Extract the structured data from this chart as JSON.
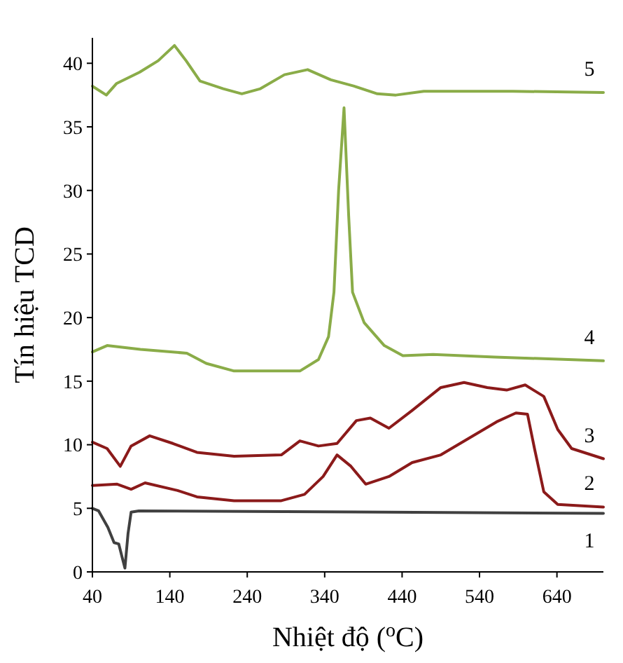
{
  "chart_data": {
    "type": "line",
    "xlabel": "Nhiệt độ ($^{o}$C)",
    "ylabel": "Tín hiệu TCD",
    "xlim": [
      40,
      700
    ],
    "ylim": [
      0,
      42
    ],
    "xticks": [
      40,
      140,
      240,
      340,
      440,
      540,
      640
    ],
    "yticks": [
      0,
      5,
      10,
      15,
      20,
      25,
      30,
      35,
      40
    ],
    "grid": false,
    "marker": "none",
    "line_style": "solid",
    "series": [
      {
        "name": "1",
        "color": "#404040",
        "x": [
          40,
          48,
          60,
          68,
          74,
          79,
          82,
          86,
          90,
          100,
          700
        ],
        "values": [
          5,
          4.8,
          3.5,
          2.3,
          2.2,
          1,
          0.3,
          3,
          4.7,
          4.8,
          4.6
        ]
      },
      {
        "name": "2",
        "color": "#8b1a1a",
        "x": [
          40,
          72,
          90,
          108,
          150,
          175,
          223,
          284,
          314,
          338,
          356,
          374,
          393,
          423,
          453,
          490,
          526,
          562,
          587,
          602,
          611,
          623,
          641,
          700
        ],
        "values": [
          6.8,
          6.9,
          6.5,
          7,
          6.4,
          5.9,
          5.6,
          5.6,
          6.1,
          7.5,
          9.2,
          8.3,
          6.9,
          7.5,
          8.6,
          9.2,
          10.5,
          11.8,
          12.5,
          12.4,
          9.7,
          6.3,
          5.3,
          5.1
        ]
      },
      {
        "name": "3",
        "color": "#8b1a1a",
        "x": [
          40,
          59,
          76,
          90,
          114,
          144,
          175,
          223,
          284,
          308,
          332,
          356,
          381,
          399,
          423,
          453,
          490,
          520,
          550,
          575,
          599,
          623,
          641,
          659,
          700
        ],
        "values": [
          10.2,
          9.7,
          8.3,
          9.9,
          10.7,
          10.1,
          9.4,
          9.1,
          9.2,
          10.3,
          9.9,
          10.1,
          11.9,
          12.1,
          11.3,
          12.7,
          14.5,
          14.9,
          14.5,
          14.3,
          14.7,
          13.8,
          11.2,
          9.7,
          8.9
        ]
      },
      {
        "name": "4",
        "color": "#8aac48",
        "x": [
          40,
          59,
          102,
          162,
          187,
          223,
          308,
          332,
          345,
          352,
          358,
          365,
          371,
          376,
          391,
          417,
          441,
          480,
          560,
          700
        ],
        "values": [
          17.3,
          17.8,
          17.5,
          17.2,
          16.4,
          15.8,
          15.8,
          16.7,
          18.5,
          22,
          30,
          36.5,
          28,
          22,
          19.6,
          17.8,
          17,
          17.1,
          16.9,
          16.6
        ]
      },
      {
        "name": "5",
        "color": "#8aac48",
        "x": [
          40,
          58,
          71,
          101,
          125,
          146,
          161,
          179,
          209,
          233,
          257,
          288,
          318,
          348,
          378,
          408,
          432,
          468,
          583,
          700
        ],
        "values": [
          38.2,
          37.5,
          38.4,
          39.3,
          40.2,
          41.4,
          40.2,
          38.6,
          38,
          37.6,
          38,
          39.1,
          39.5,
          38.7,
          38.2,
          37.6,
          37.5,
          37.8,
          37.8,
          37.7
        ]
      }
    ]
  }
}
